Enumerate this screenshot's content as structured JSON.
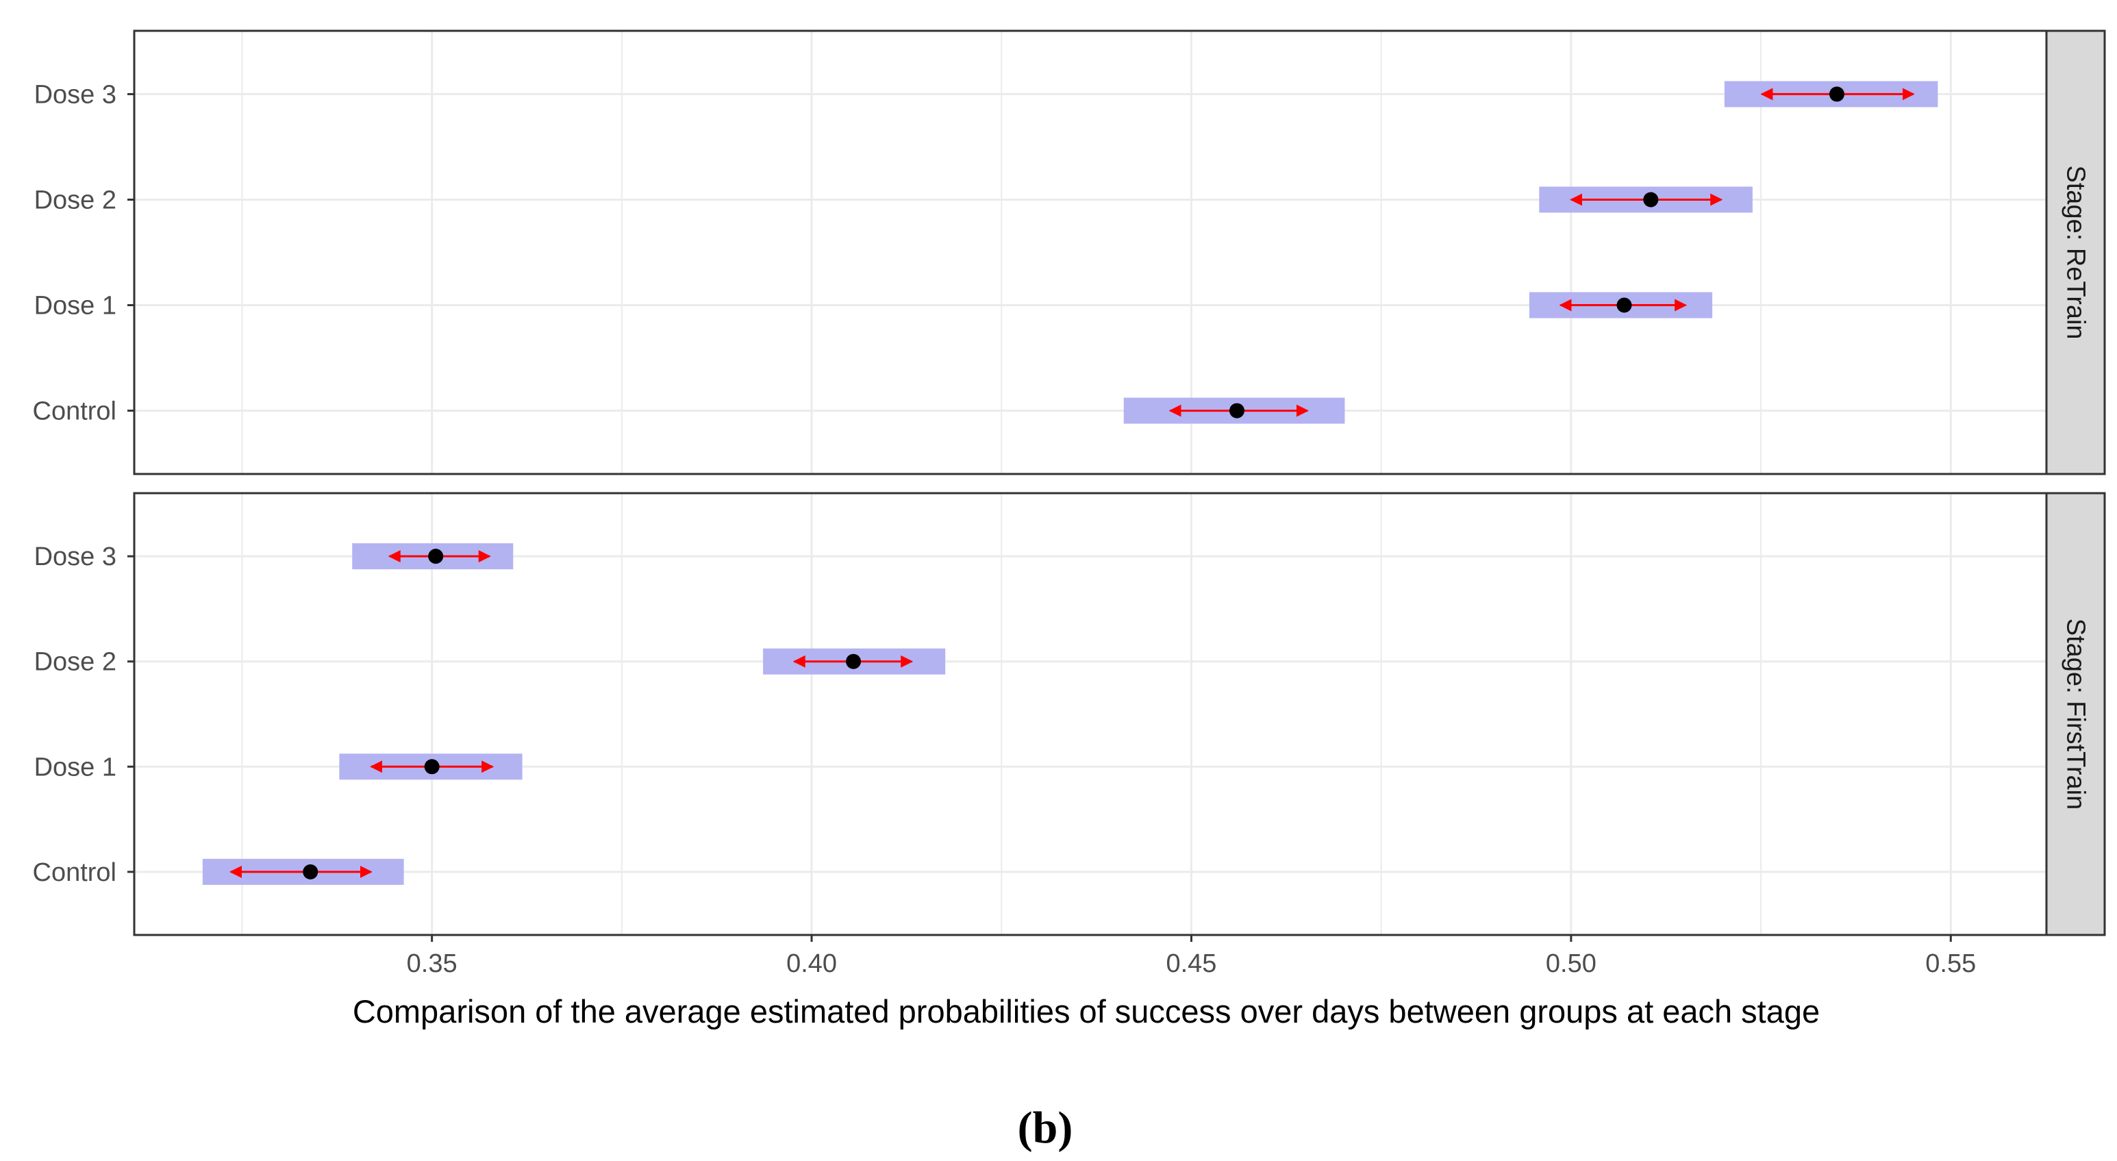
{
  "chart_data": {
    "type": "point-range",
    "panel_tag": "(b)",
    "xlabel": "Comparison of the average estimated probabilities of success over days between groups at each stage",
    "ylabel": "",
    "xlim": [
      0.3108,
      0.5626
    ],
    "x_ticks": [
      0.35,
      0.4,
      0.45,
      0.5,
      0.55
    ],
    "x_tick_labels": [
      "0.35",
      "0.40",
      "0.45",
      "0.50",
      "0.55"
    ],
    "categories": [
      "Control",
      "Dose 1",
      "Dose 2",
      "Dose 3"
    ],
    "grid": true,
    "colors": {
      "band": "#b3b3f2",
      "arrow": "#ff0000",
      "point": "#000000",
      "strip": "#d9d9d9",
      "grid": "#ebebeb",
      "border": "#333333"
    },
    "facets": [
      {
        "label": "Stage: ReTrain",
        "points": [
          {
            "group": "Control",
            "estimate": 0.456,
            "band_low": 0.4411,
            "band_high": 0.4702,
            "arrow_low": 0.4472,
            "arrow_high": 0.4653
          },
          {
            "group": "Dose 1",
            "estimate": 0.507,
            "band_low": 0.4945,
            "band_high": 0.5186,
            "arrow_low": 0.4986,
            "arrow_high": 0.5151
          },
          {
            "group": "Dose 2",
            "estimate": 0.5105,
            "band_low": 0.4958,
            "band_high": 0.5239,
            "arrow_low": 0.5,
            "arrow_high": 0.5198
          },
          {
            "group": "Dose 3",
            "estimate": 0.535,
            "band_low": 0.5202,
            "band_high": 0.5483,
            "arrow_low": 0.5251,
            "arrow_high": 0.5451
          }
        ]
      },
      {
        "label": "Stage: FirstTrain",
        "points": [
          {
            "group": "Control",
            "estimate": 0.334,
            "band_low": 0.3198,
            "band_high": 0.3463,
            "arrow_low": 0.3235,
            "arrow_high": 0.342
          },
          {
            "group": "Dose 1",
            "estimate": 0.35,
            "band_low": 0.3378,
            "band_high": 0.3619,
            "arrow_low": 0.342,
            "arrow_high": 0.358
          },
          {
            "group": "Dose 2",
            "estimate": 0.4055,
            "band_low": 0.3936,
            "band_high": 0.4176,
            "arrow_low": 0.3977,
            "arrow_high": 0.4132
          },
          {
            "group": "Dose 3",
            "estimate": 0.3505,
            "band_low": 0.3395,
            "band_high": 0.3607,
            "arrow_low": 0.3444,
            "arrow_high": 0.3576
          }
        ]
      }
    ]
  }
}
